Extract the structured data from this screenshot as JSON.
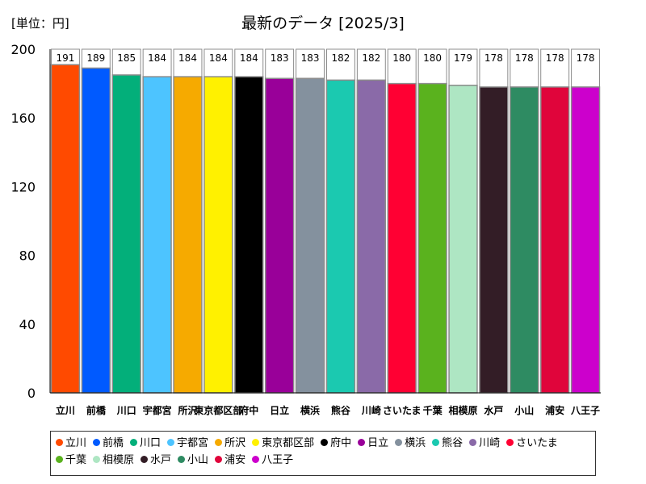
{
  "unit_label": "[単位：円]",
  "chart_data": {
    "type": "bar",
    "title": "最新のデータ [2025/3]",
    "categories": [
      "立川",
      "前橋",
      "川口",
      "宇都宮",
      "所沢",
      "東京都区部",
      "府中",
      "日立",
      "横浜",
      "熊谷",
      "川崎",
      "さいたま",
      "千葉",
      "相模原",
      "水戸",
      "小山",
      "浦安",
      "八王子"
    ],
    "values": [
      191,
      189,
      185,
      184,
      184,
      184,
      184,
      183,
      183,
      182,
      182,
      180,
      180,
      179,
      178,
      178,
      178,
      178
    ],
    "colors": [
      "#ff4a00",
      "#005aff",
      "#03af7a",
      "#4dc4ff",
      "#f6aa00",
      "#fff100",
      "#000000",
      "#990099",
      "#84919e",
      "#1bc9b0",
      "#8a6aa8",
      "#ff0033",
      "#5ab21e",
      "#aee6c3",
      "#331d26",
      "#2e8b62",
      "#e0053b",
      "#cc00cc"
    ],
    "yticks": [
      "0",
      "40",
      "80",
      "120",
      "160",
      "200"
    ],
    "ylim": [
      0,
      200
    ],
    "legend_position": "bottom",
    "grid": false
  }
}
